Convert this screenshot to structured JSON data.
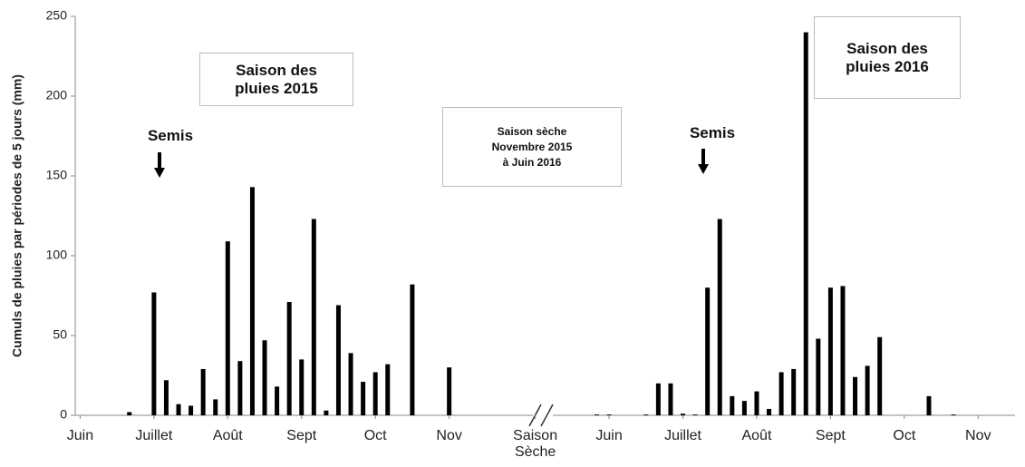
{
  "chart_data": {
    "type": "bar",
    "ylabel": "Cumuls de pluies  par périodes de 5 jours (mm)",
    "x": [
      4,
      6,
      7,
      8,
      9,
      10,
      11,
      12,
      13,
      14,
      15,
      16,
      17,
      18,
      19,
      20,
      21,
      22,
      23,
      24,
      25,
      27,
      30,
      42,
      43,
      46,
      47,
      48,
      49,
      50,
      51,
      52,
      53,
      54,
      55,
      56,
      57,
      58,
      59,
      60,
      61,
      62,
      63,
      64,
      65,
      69,
      71
    ],
    "values": [
      2,
      77,
      22,
      7,
      6,
      29,
      10,
      109,
      34,
      143,
      47,
      18,
      71,
      35,
      123,
      3,
      69,
      39,
      21,
      27,
      32,
      82,
      30,
      0.5,
      0.5,
      0.5,
      20,
      20,
      1,
      0.5,
      80,
      123,
      12,
      9,
      15,
      4,
      27,
      29,
      240,
      48,
      80,
      81,
      24,
      31,
      49,
      12,
      0.5
    ],
    "color": "#000000",
    "xlim": [
      -0.4,
      76
    ],
    "xticks": [
      {
        "value": 0,
        "label": "Juin"
      },
      {
        "value": 6,
        "label": "Juillet"
      },
      {
        "value": 12,
        "label": "Août"
      },
      {
        "value": 18,
        "label": "Sept"
      },
      {
        "value": 24,
        "label": "Oct"
      },
      {
        "value": 30,
        "label": "Nov"
      },
      {
        "value": 37,
        "label": "Saison Sèche"
      },
      {
        "value": 43,
        "label": "Juin"
      },
      {
        "value": 49,
        "label": "Juillet"
      },
      {
        "value": 55,
        "label": "Août"
      },
      {
        "value": 61,
        "label": "Sept"
      },
      {
        "value": 67,
        "label": "Oct"
      },
      {
        "value": 73,
        "label": "Nov"
      }
    ],
    "ylim": [
      0,
      250
    ],
    "yticks": [
      0,
      50,
      100,
      150,
      200,
      250
    ],
    "annotations": [
      "Saison des\npluies 2015",
      "Semis",
      "Saison sèche\nNovembre 2015\nà Juin 2016",
      "Semis",
      "Saison des\npluies 2016"
    ]
  }
}
